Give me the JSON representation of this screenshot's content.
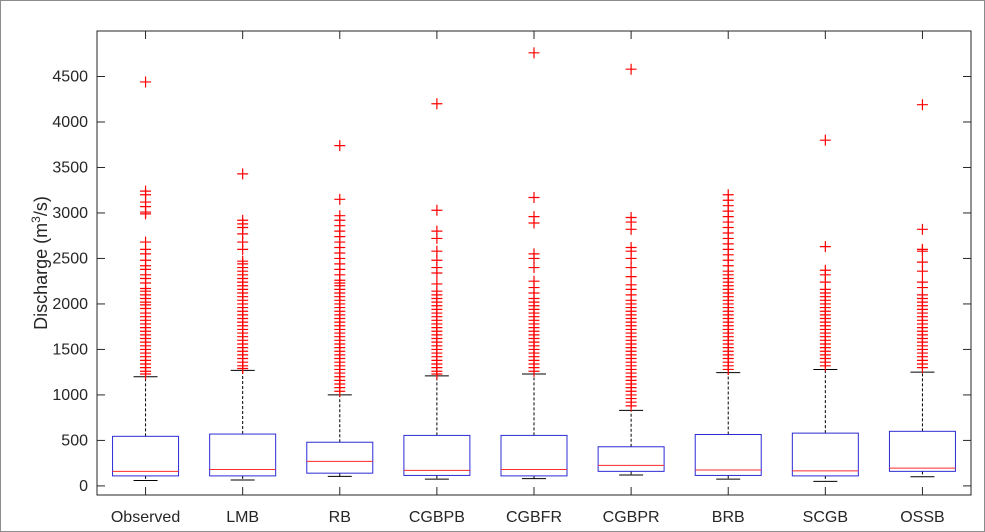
{
  "chart_data": {
    "type": "box",
    "title": "",
    "xlabel": "",
    "ylabel": {
      "prefix": "Discharge (m",
      "sup": "3",
      "suffix": "/s)"
    },
    "ylim": [
      -100,
      5000
    ],
    "yticks": [
      0,
      500,
      1000,
      1500,
      2000,
      2500,
      3000,
      3500,
      4000,
      4500
    ],
    "ytick_labels": [
      "0",
      "500",
      "1000",
      "1500",
      "2000",
      "2500",
      "3000",
      "3500",
      "4000",
      "4500"
    ],
    "grid": false,
    "colors": {
      "box": "#2b2bd6",
      "median": "#ff2a2a",
      "whisker": "#000000",
      "outlier": "#ff0000",
      "axis": "#262626"
    },
    "categories": [
      "Observed",
      "LMB",
      "RB",
      "CGBPB",
      "CGBFR",
      "CGBPR",
      "BRB",
      "SCGB",
      "OSSB"
    ],
    "boxes": [
      {
        "name": "Observed",
        "min": 60,
        "q1": 110,
        "median": 160,
        "q3": 545,
        "max": 1200,
        "outliers": [
          4440,
          3240,
          3200,
          3120,
          3070,
          3010,
          2990,
          2680,
          2600,
          2550,
          2480,
          2420,
          2380,
          2320,
          2280,
          2230,
          2170,
          2140,
          2100,
          2060,
          2020,
          1990,
          1950,
          1900,
          1860,
          1820,
          1780,
          1740,
          1700,
          1660,
          1620,
          1580,
          1540,
          1500,
          1460,
          1420,
          1380,
          1340,
          1300,
          1260,
          1230
        ]
      },
      {
        "name": "LMB",
        "min": 65,
        "q1": 110,
        "median": 180,
        "q3": 570,
        "max": 1270,
        "outliers": [
          3430,
          2920,
          2880,
          2840,
          2770,
          2680,
          2600,
          2470,
          2440,
          2400,
          2360,
          2320,
          2280,
          2240,
          2200,
          2160,
          2120,
          2080,
          2040,
          2000,
          1960,
          1920,
          1880,
          1840,
          1800,
          1760,
          1720,
          1680,
          1640,
          1600,
          1560,
          1520,
          1480,
          1440,
          1400,
          1360,
          1320,
          1290
        ]
      },
      {
        "name": "RB",
        "min": 105,
        "q1": 140,
        "median": 270,
        "q3": 480,
        "max": 1000,
        "outliers": [
          3740,
          3150,
          2970,
          2920,
          2860,
          2800,
          2740,
          2680,
          2620,
          2560,
          2500,
          2440,
          2380,
          2320,
          2260,
          2230,
          2200,
          2160,
          2120,
          2080,
          2040,
          2000,
          1960,
          1920,
          1880,
          1840,
          1800,
          1760,
          1720,
          1680,
          1640,
          1600,
          1560,
          1520,
          1480,
          1440,
          1400,
          1360,
          1320,
          1280,
          1240,
          1200,
          1160,
          1120,
          1080,
          1040
        ]
      },
      {
        "name": "CGBPB",
        "min": 75,
        "q1": 115,
        "median": 170,
        "q3": 555,
        "max": 1210,
        "outliers": [
          4200,
          3030,
          2800,
          2720,
          2580,
          2480,
          2400,
          2340,
          2220,
          2140,
          2100,
          2060,
          2020,
          1980,
          1940,
          1900,
          1860,
          1820,
          1780,
          1740,
          1700,
          1660,
          1620,
          1580,
          1540,
          1500,
          1460,
          1420,
          1380,
          1340,
          1300,
          1260,
          1230
        ]
      },
      {
        "name": "CGBFR",
        "min": 80,
        "q1": 110,
        "median": 180,
        "q3": 555,
        "max": 1230,
        "outliers": [
          4760,
          3170,
          2960,
          2890,
          2550,
          2500,
          2400,
          2250,
          2180,
          2120,
          2060,
          2020,
          1980,
          1940,
          1900,
          1860,
          1820,
          1780,
          1740,
          1700,
          1660,
          1620,
          1580,
          1540,
          1500,
          1460,
          1420,
          1380,
          1340,
          1300,
          1260
        ]
      },
      {
        "name": "CGBPR",
        "min": 120,
        "q1": 160,
        "median": 225,
        "q3": 430,
        "max": 830,
        "outliers": [
          4580,
          2950,
          2900,
          2820,
          2620,
          2580,
          2500,
          2400,
          2300,
          2210,
          2160,
          2100,
          2040,
          2000,
          1960,
          1920,
          1880,
          1840,
          1800,
          1760,
          1720,
          1680,
          1640,
          1600,
          1560,
          1520,
          1480,
          1440,
          1400,
          1360,
          1320,
          1280,
          1240,
          1200,
          1160,
          1120,
          1080,
          1040,
          1000,
          960,
          920,
          880
        ]
      },
      {
        "name": "BRB",
        "min": 75,
        "q1": 115,
        "median": 175,
        "q3": 565,
        "max": 1245,
        "outliers": [
          3200,
          3140,
          3080,
          3020,
          2960,
          2900,
          2840,
          2780,
          2720,
          2660,
          2600,
          2540,
          2480,
          2420,
          2360,
          2320,
          2280,
          2240,
          2200,
          2160,
          2120,
          2080,
          2040,
          2000,
          1960,
          1920,
          1880,
          1840,
          1800,
          1760,
          1720,
          1680,
          1640,
          1600,
          1560,
          1520,
          1480,
          1440,
          1400,
          1360,
          1320,
          1280
        ]
      },
      {
        "name": "SCGB",
        "min": 50,
        "q1": 110,
        "median": 165,
        "q3": 580,
        "max": 1280,
        "outliers": [
          3800,
          2630,
          2370,
          2320,
          2240,
          2160,
          2120,
          2080,
          2040,
          2000,
          1960,
          1920,
          1880,
          1840,
          1800,
          1760,
          1720,
          1680,
          1640,
          1600,
          1560,
          1520,
          1480,
          1440,
          1400,
          1360,
          1320
        ]
      },
      {
        "name": "OSSB",
        "min": 100,
        "q1": 160,
        "median": 195,
        "q3": 600,
        "max": 1250,
        "outliers": [
          4190,
          2820,
          2600,
          2580,
          2460,
          2360,
          2240,
          2180,
          2100,
          2060,
          2020,
          1980,
          1940,
          1900,
          1860,
          1820,
          1780,
          1740,
          1700,
          1660,
          1620,
          1580,
          1540,
          1500,
          1460,
          1420,
          1380,
          1340,
          1300
        ]
      }
    ]
  }
}
